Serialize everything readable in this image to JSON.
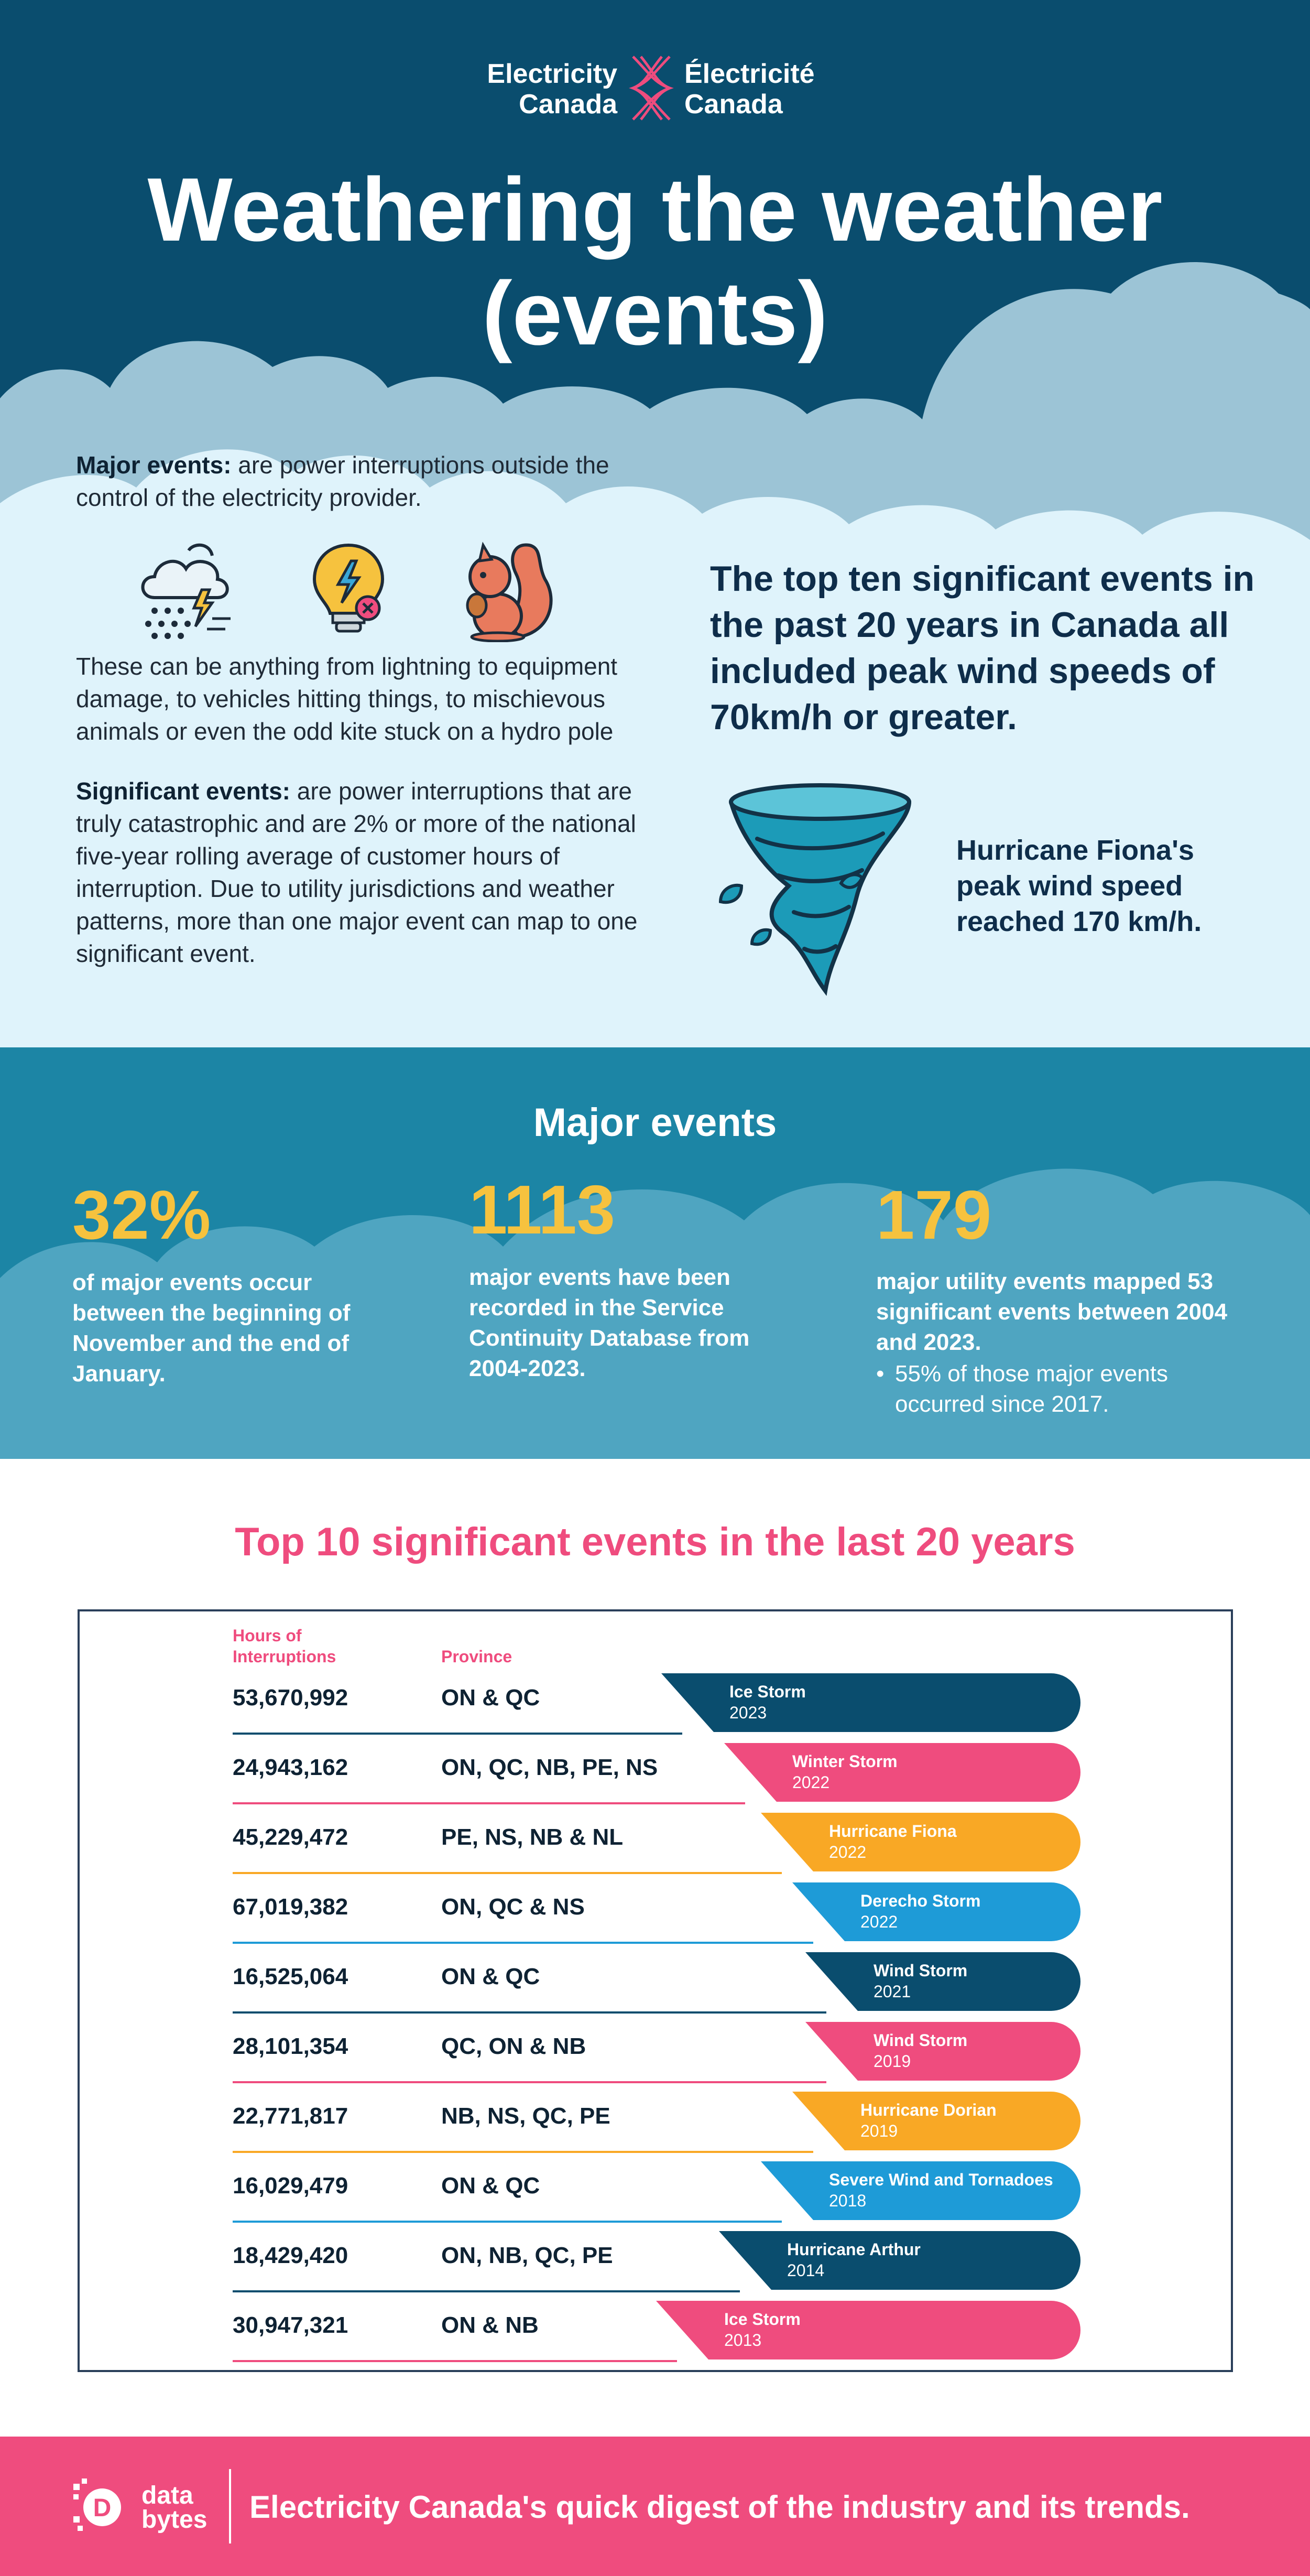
{
  "header": {
    "logo_en_line1": "Electricity",
    "logo_en_line2": "Canada",
    "logo_fr_line1": "Électricité",
    "logo_fr_line2": "Canada",
    "title_line1": "Weathering the weather",
    "title_line2": "(events)"
  },
  "intro": {
    "major_label": "Major events:",
    "major_def": " are power interruptions outside the control of the electricity provider.",
    "icons": [
      "storm-cloud-icon",
      "lightbulb-error-icon",
      "squirrel-icon"
    ],
    "examples": "These can be anything from lightning to equipment damage, to vehicles hitting things, to mischievous animals or even the odd kite stuck on a hydro pole",
    "significant_label": "Significant events:",
    "significant_def": " are power interruptions that are truly catastrophic and are 2% or more of the national five-year rolling average of customer hours of interruption. Due to utility jurisdictions and weather patterns, more than one major event can map to one significant event.",
    "claim": "The top ten significant events in the past 20 years in Canada all included peak wind speeds of 70km/h or greater.",
    "fiona": "Hurricane Fiona's peak wind speed reached 170 km/h."
  },
  "major_events": {
    "title": "Major events",
    "stats": [
      {
        "value": "32%",
        "text": "of  major events occur between the beginning of November and the end of January."
      },
      {
        "value": "1113",
        "text": "major events have been recorded in the Service Continuity Database from 2004-2023."
      },
      {
        "value": "179",
        "text": "major utility events mapped 53 significant events between 2004 and 2023."
      }
    ],
    "bullet": "55% of those major events occurred since 2017."
  },
  "top10": {
    "title": "Top 10 significant events in the last 20 years",
    "col_hours_line1": "Hours of",
    "col_hours_line2": "Interruptions",
    "col_province": "Province",
    "rows": [
      {
        "hours": "53,670,992",
        "province": "ON & QC",
        "event": "Ice Storm",
        "year": "2023",
        "color": "#0a4d6e"
      },
      {
        "hours": "24,943,162",
        "province": "ON, QC, NB, PE, NS",
        "event": "Winter Storm",
        "year": "2022",
        "color": "#ef4c7e"
      },
      {
        "hours": "45,229,472",
        "province": "PE, NS, NB & NL",
        "event": "Hurricane Fiona",
        "year": "2022",
        "color": "#f9a825"
      },
      {
        "hours": "67,019,382",
        "province": "ON, QC & NS",
        "event": "Derecho Storm",
        "year": "2022",
        "color": "#1e9bd7"
      },
      {
        "hours": "16,525,064",
        "province": "ON & QC",
        "event": "Wind Storm",
        "year": "2021",
        "color": "#0a4d6e"
      },
      {
        "hours": "28,101,354",
        "province": "QC, ON & NB",
        "event": "Wind Storm",
        "year": "2019",
        "color": "#ef4c7e"
      },
      {
        "hours": "22,771,817",
        "province": "NB, NS, QC, PE",
        "event": "Hurricane Dorian",
        "year": "2019",
        "color": "#f9a825"
      },
      {
        "hours": "16,029,479",
        "province": "ON & QC",
        "event": "Severe Wind and Tornadoes",
        "year": "2018",
        "color": "#1e9bd7"
      },
      {
        "hours": "18,429,420",
        "province": "ON, NB, QC, PE",
        "event": "Hurricane Arthur",
        "year": "2014",
        "color": "#0a4d6e"
      },
      {
        "hours": "30,947,321",
        "province": "ON & NB",
        "event": "Ice Storm",
        "year": "2013",
        "color": "#ef4c7e"
      }
    ]
  },
  "footer": {
    "brand_line1": "data",
    "brand_line2": "bytes",
    "tagline": "Electricity Canada's quick digest of the industry and its trends."
  }
}
